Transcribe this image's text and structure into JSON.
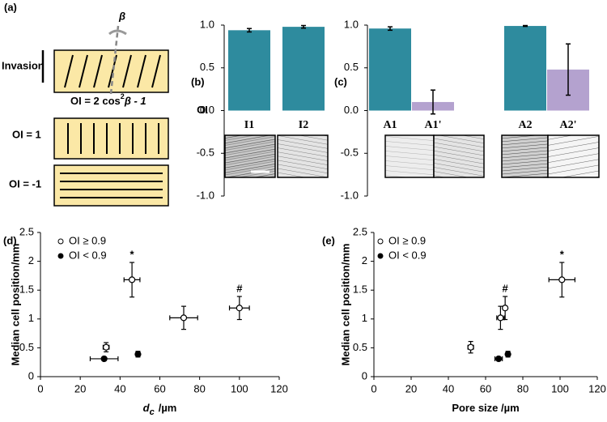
{
  "panel_a": {
    "label": "(a)",
    "angle_symbol": "β",
    "invasion": "Invasion",
    "formula": [
      "OI = 2 cos",
      "2",
      "β - 1"
    ],
    "aligned": "OI = 1",
    "perpendicular": "OI = -1"
  },
  "chart_data": [
    {
      "type": "bar",
      "panel": "(b)",
      "ylabel": "OI",
      "categories": [
        "I1",
        "I2"
      ],
      "values": [
        0.94,
        0.98
      ],
      "errors": [
        0.02,
        0.015
      ],
      "colors": [
        "#2e8b9e",
        "#2e8b9e"
      ],
      "ylim": [
        -1,
        1
      ],
      "yticks": [
        {
          "value": -1,
          "label": "-1.0"
        },
        {
          "value": -0.5,
          "label": "-0.5"
        },
        {
          "value": 0,
          "label": "0.0"
        },
        {
          "value": 0.5,
          "label": "0.5"
        },
        {
          "value": 1,
          "label": "1.0"
        }
      ]
    },
    {
      "type": "bar",
      "panel": "(c)",
      "categories": [
        "A1",
        "A1'",
        "A2",
        "A2'"
      ],
      "values": [
        0.96,
        0.1,
        0.99,
        0.48
      ],
      "errors": [
        0.02,
        0.14,
        0.005,
        0.3
      ],
      "colors": [
        "#2e8b9e",
        "#b4a2cf",
        "#2e8b9e",
        "#b4a2cf"
      ],
      "ylim": [
        -1,
        1
      ],
      "yticks": [
        {
          "value": -1,
          "label": "-1.0"
        },
        {
          "value": -0.5,
          "label": "-0.5"
        },
        {
          "value": 0,
          "label": "0.0"
        },
        {
          "value": 0.5,
          "label": "0.5"
        },
        {
          "value": 1,
          "label": "1.0"
        }
      ]
    },
    {
      "type": "scatter",
      "panel": "(d)",
      "xlabel": {
        "symbol": "d",
        "subscript": "c",
        "unit": "/µm"
      },
      "ylabel": "Median cell position/mm",
      "xlim": [
        0,
        120
      ],
      "xticks": [
        0,
        20,
        40,
        60,
        80,
        100,
        120
      ],
      "ylim": [
        0,
        2.5
      ],
      "yticks": [
        0,
        0.5,
        1,
        1.5,
        2,
        2.5
      ],
      "legend": "top-left",
      "series": [
        {
          "name": "OI ≥ 0.9",
          "color": "#000000",
          "marker_fill": "#ffffff",
          "x": [
            33,
            46,
            72,
            100
          ],
          "values": [
            0.51,
            1.68,
            1.02,
            1.19
          ],
          "xerr": [
            1.5,
            4,
            7,
            5
          ],
          "yerr": [
            0.08,
            0.3,
            0.2,
            0.2
          ],
          "point_labels": [
            null,
            "*",
            null,
            "#"
          ]
        },
        {
          "name": "OI < 0.9",
          "color": "#000000",
          "marker_fill": "#000000",
          "x": [
            32,
            49
          ],
          "values": [
            0.31,
            0.39
          ],
          "xerr": [
            7,
            1
          ],
          "yerr": [
            0.03,
            0.05
          ],
          "point_labels": [
            null,
            null
          ]
        }
      ]
    },
    {
      "type": "scatter",
      "panel": "(e)",
      "xlabel": {
        "unit": "Pore size /µm"
      },
      "ylabel": "Median cell position/mm",
      "xlim": [
        0,
        120
      ],
      "xticks": [
        0,
        20,
        40,
        60,
        80,
        100,
        120
      ],
      "ylim": [
        0,
        2.5
      ],
      "yticks": [
        0,
        0.5,
        1,
        1.5,
        2,
        2.5
      ],
      "legend": "top-left",
      "series": [
        {
          "name": "OI ≥ 0.9",
          "color": "#000000",
          "marker_fill": "#ffffff",
          "x": [
            52,
            68,
            70.5,
            101
          ],
          "values": [
            0.51,
            1.02,
            1.19,
            1.68
          ],
          "xerr": [
            1.5,
            2,
            1,
            7
          ],
          "yerr": [
            0.1,
            0.2,
            0.2,
            0.3
          ],
          "point_labels": [
            null,
            null,
            "#",
            "*"
          ]
        },
        {
          "name": "OI < 0.9",
          "color": "#000000",
          "marker_fill": "#000000",
          "x": [
            67,
            72
          ],
          "values": [
            0.31,
            0.39
          ],
          "xerr": [
            2,
            1
          ],
          "yerr": [
            0.03,
            0.05
          ],
          "point_labels": [
            null,
            null
          ]
        }
      ]
    }
  ]
}
